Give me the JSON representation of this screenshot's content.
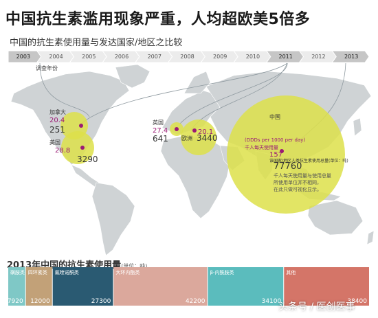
{
  "header": {
    "title": "中国抗生素滥用现象严重，人均超欧美5倍多",
    "subtitle": "中国的抗生素使用量与发达国家/地区之比较"
  },
  "timeline": {
    "years": [
      "2003",
      "2004",
      "2005",
      "2006",
      "2007",
      "2008",
      "2009",
      "2010",
      "2011",
      "2012",
      "2013"
    ],
    "highlighted": [
      "2003",
      "2011",
      "2013"
    ],
    "survey_label": "调查年份"
  },
  "map": {
    "regions": [
      {
        "key": "canada",
        "name": "加拿大",
        "per_capita": "20.4",
        "total": "251"
      },
      {
        "key": "usa",
        "name": "美国",
        "per_capita": "28.8",
        "total": "3290"
      },
      {
        "key": "uk",
        "name": "英国",
        "per_capita": "27.4",
        "total": "641"
      },
      {
        "key": "europe",
        "name": "欧洲",
        "per_capita": "20.1",
        "total": "3440"
      },
      {
        "key": "china",
        "name": "中国",
        "per_capita": "157",
        "total": "77760"
      }
    ],
    "ddd_note": "(DDDs per 1000 per day)",
    "per_capita_label": "千人每天使用量",
    "total_label": "该国家/地区人类抗生素使用总量(单位：吨)",
    "footnote": [
      "千人每天使用量与使用总量",
      "所使用单位并不相同，",
      "在此只做可视化显示。"
    ],
    "colors": {
      "bubble": "#dde04a",
      "value": "#9b1a75",
      "ocean": "#ffffff",
      "land": "#cfd3d5"
    }
  },
  "chart_data": {
    "type": "bar",
    "title": "2013年中国的抗生素使用量",
    "unit": "(单位：吨)",
    "categories": [
      "磺胺类",
      "四环素类",
      "氟喹诺酮类",
      "大环内酯类",
      "β-内酰胺类",
      "其他"
    ],
    "values": [
      7920,
      12000,
      27300,
      42200,
      34100,
      38400
    ],
    "colors": [
      "#7fc8c6",
      "#c2a178",
      "#2a5a72",
      "#dba89c",
      "#5bbcbd",
      "#d47568"
    ]
  },
  "watermark": "头条号 / 医创医事"
}
